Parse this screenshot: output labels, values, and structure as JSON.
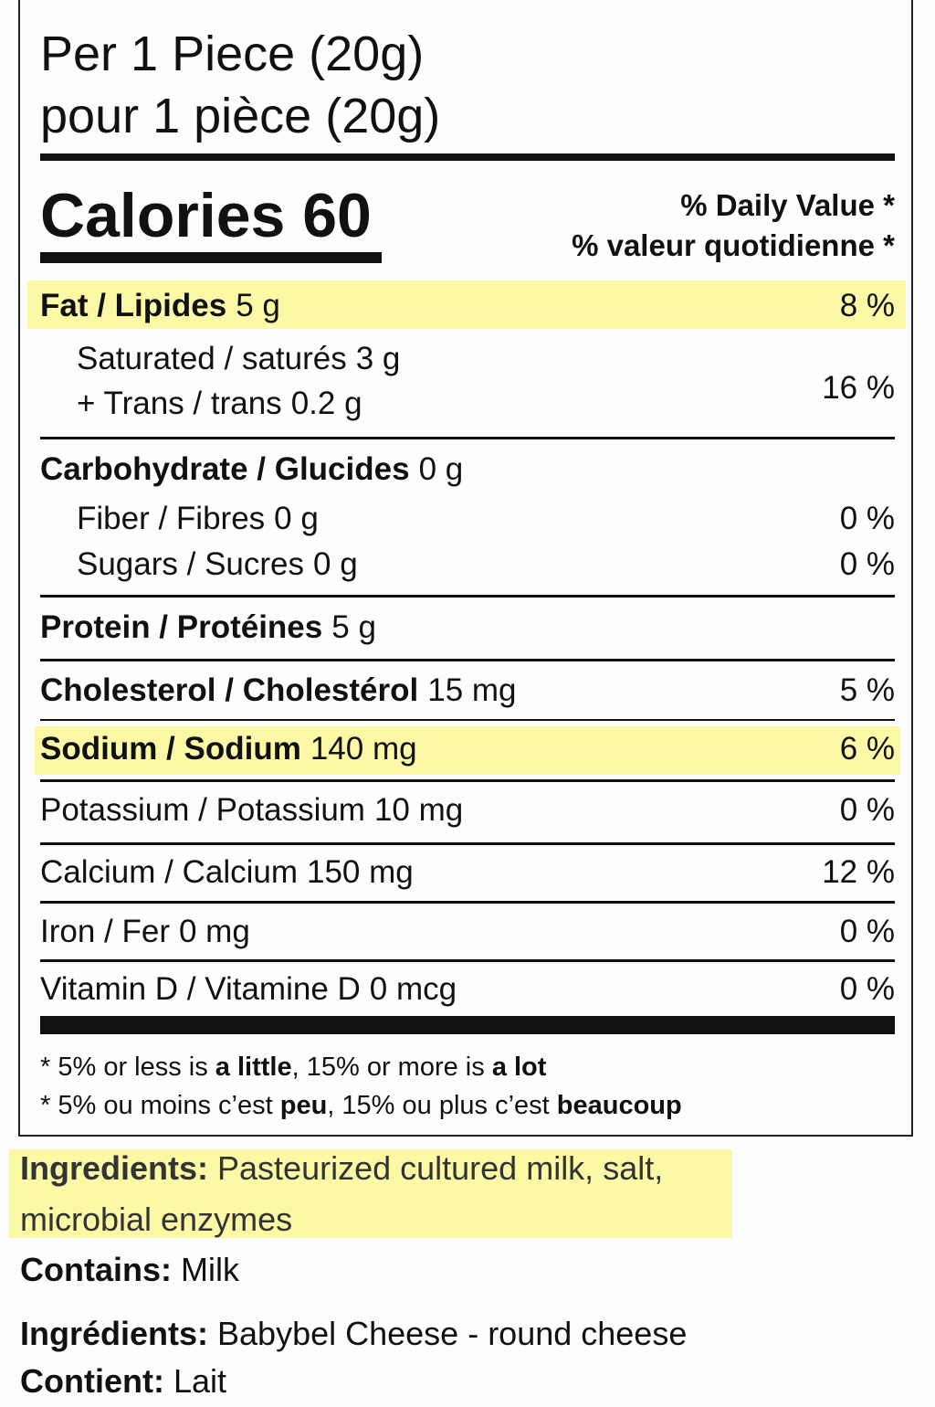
{
  "serving": [
    "Per 1 Piece (20g)",
    "pour 1 pièce (20g)"
  ],
  "calories": "Calories 60",
  "dv_header": [
    "% Daily Value *",
    "% valeur quotidienne *"
  ],
  "rows": [
    {
      "label": "Fat / Lipides",
      "amount": "5 g",
      "dv": "8 %"
    },
    {
      "label": "Saturated / saturés",
      "amount": "3 g",
      "label2": "+ Trans / trans",
      "amount2": "0.2 g",
      "dv": "16 %"
    },
    {
      "label": "Carbohydrate / Glucides",
      "amount": "0 g"
    },
    {
      "label": "Fiber / Fibres",
      "amount": "0 g",
      "dv": "0 %"
    },
    {
      "label": "Sugars / Sucres",
      "amount": "0 g",
      "dv": "0 %"
    },
    {
      "label": "Protein / Protéines",
      "amount": "5 g"
    },
    {
      "label": "Cholesterol / Cholestérol",
      "amount": "15 mg",
      "dv": "5 %"
    },
    {
      "label": "Sodium / Sodium",
      "amount": "140 mg",
      "dv": "6 %"
    },
    {
      "label": "Potassium / Potassium",
      "amount": "10 mg",
      "dv": "0 %"
    },
    {
      "label": "Calcium / Calcium",
      "amount": "150 mg",
      "dv": "12 %"
    },
    {
      "label": "Iron / Fer",
      "amount": "0 mg",
      "dv": "0 %"
    },
    {
      "label": "Vitamin D / Vitamine D",
      "amount": "0 mcg",
      "dv": "0 %"
    }
  ],
  "footnote": [
    [
      "* 5% or less is",
      "a little",
      ", 15% or more is",
      "a lot"
    ],
    [
      "* 5% ou moins c’est",
      "peu",
      ", 15% ou plus c’est",
      "beaucoup"
    ]
  ],
  "ingredients": {
    "label": "Ingredients:",
    "text": "Pasteurized cultured milk, salt, microbial enzymes"
  },
  "contains": {
    "label": "Contains:",
    "text": "Milk"
  },
  "ingredients_fr": {
    "label": "Ingrédients:",
    "text": "Babybel Cheese - round cheese"
  },
  "contains_fr": {
    "label": "Contient:",
    "text": "Lait"
  }
}
